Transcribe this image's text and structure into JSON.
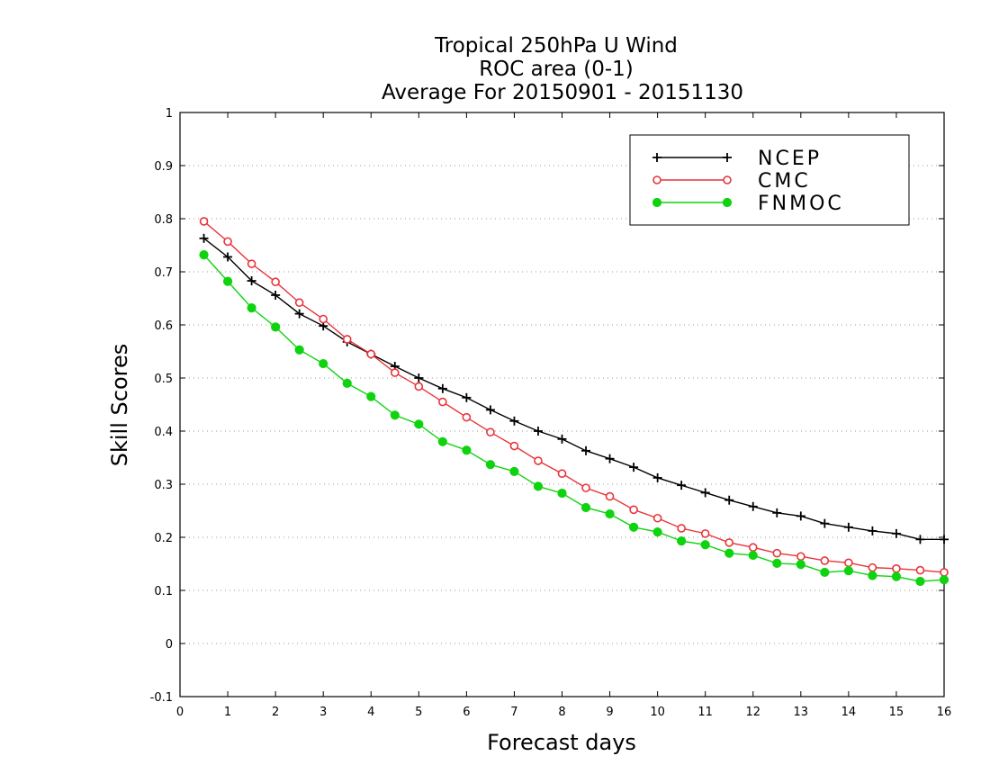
{
  "chart_data": {
    "type": "line",
    "title": [
      "Tropical 250hPa U Wind",
      "ROC area (0-1)",
      "Average For 20150901 - 20151130"
    ],
    "xlabel": "Forecast days",
    "ylabel": "Skill Scores",
    "xlim": [
      0,
      16
    ],
    "ylim": [
      -0.1,
      1
    ],
    "x_ticks": [
      0,
      1,
      2,
      3,
      4,
      5,
      6,
      7,
      8,
      9,
      10,
      11,
      12,
      13,
      14,
      15,
      16
    ],
    "x_tick_labels": [
      "0",
      "1",
      "2",
      "3",
      "4",
      "5",
      "6",
      "7",
      "8",
      "9",
      "10",
      "11",
      "12",
      "13",
      "14",
      "15",
      "16"
    ],
    "y_ticks": [
      -0.1,
      0,
      0.1,
      0.2,
      0.3,
      0.4,
      0.5,
      0.6,
      0.7,
      0.8,
      0.9,
      1
    ],
    "y_tick_labels": [
      "-0.1",
      "0",
      "0.1",
      "0.2",
      "0.3",
      "0.4",
      "0.5",
      "0.6",
      "0.7",
      "0.8",
      "0.9",
      "1"
    ],
    "grid": true,
    "legend_position": "top-right",
    "x": [
      0.5,
      1,
      1.5,
      2,
      2.5,
      3,
      3.5,
      4,
      4.5,
      5,
      5.5,
      6,
      6.5,
      7,
      7.5,
      8,
      8.5,
      9,
      9.5,
      10,
      10.5,
      11,
      11.5,
      12,
      12.5,
      13,
      13.5,
      14,
      14.5,
      15,
      15.5,
      16
    ],
    "series": [
      {
        "name": "NCEP",
        "color": "#000000",
        "marker": "plus",
        "values": [
          0.763,
          0.728,
          0.683,
          0.656,
          0.621,
          0.598,
          0.568,
          0.545,
          0.522,
          0.5,
          0.48,
          0.463,
          0.44,
          0.419,
          0.4,
          0.385,
          0.363,
          0.348,
          0.332,
          0.312,
          0.298,
          0.284,
          0.27,
          0.258,
          0.246,
          0.24,
          0.226,
          0.219,
          0.212,
          0.207,
          0.196,
          0.196
        ]
      },
      {
        "name": "CMC",
        "color": "#e8343a",
        "marker": "open-circle",
        "values": [
          0.795,
          0.757,
          0.715,
          0.681,
          0.642,
          0.611,
          0.573,
          0.545,
          0.51,
          0.484,
          0.455,
          0.426,
          0.398,
          0.372,
          0.344,
          0.32,
          0.293,
          0.277,
          0.252,
          0.236,
          0.217,
          0.207,
          0.19,
          0.181,
          0.17,
          0.164,
          0.156,
          0.152,
          0.143,
          0.141,
          0.138,
          0.134
        ]
      },
      {
        "name": "FNMOC",
        "color": "#0ed30e",
        "marker": "filled-circle",
        "values": [
          0.732,
          0.682,
          0.632,
          0.596,
          0.553,
          0.527,
          0.49,
          0.465,
          0.43,
          0.413,
          0.38,
          0.364,
          0.337,
          0.324,
          0.296,
          0.283,
          0.256,
          0.244,
          0.219,
          0.21,
          0.193,
          0.186,
          0.17,
          0.166,
          0.151,
          0.149,
          0.134,
          0.137,
          0.128,
          0.126,
          0.117,
          0.12
        ]
      }
    ]
  }
}
